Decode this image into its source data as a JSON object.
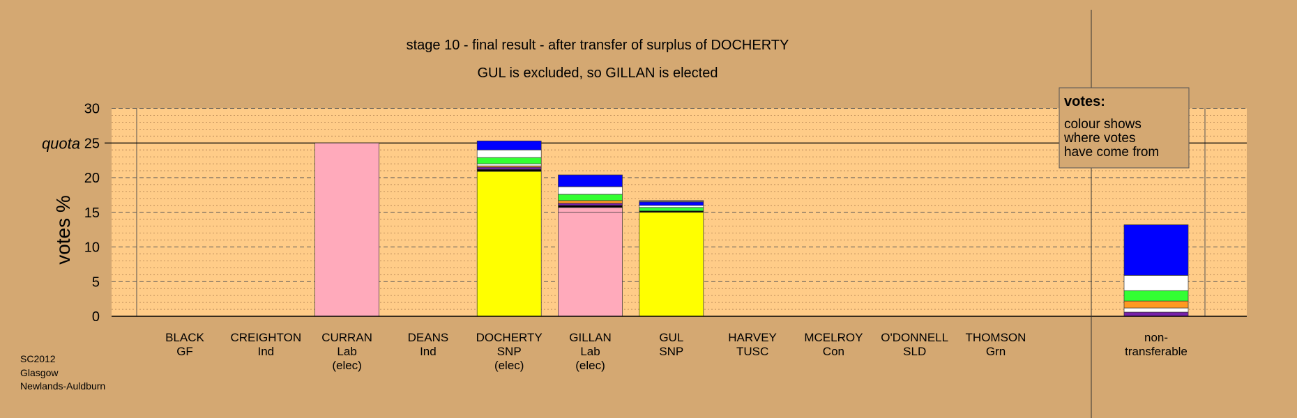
{
  "chart_data": {
    "type": "bar",
    "title": "stage 10 - final result - after transfer of surplus of DOCHERTY",
    "subtitle": "GUL is excluded, so GILLAN is elected",
    "ylabel": "votes %",
    "ylim": [
      0,
      30
    ],
    "yticks": [
      0,
      5,
      10,
      15,
      20,
      25,
      30
    ],
    "quota": 25,
    "quota_label": "quota",
    "colors": {
      "background": "#D4A872",
      "plot_bg": "#FFCC88",
      "lab": "#FFAABB",
      "snp": "#FFFF00",
      "blue": "#0000FF",
      "white": "#FFFFFF",
      "green": "#33FF33",
      "orange": "#FF9922",
      "purple": "#7722AA",
      "black": "#000000",
      "grey": "#777777"
    },
    "categories": [
      {
        "name": "BLACK",
        "party": "GF",
        "note": "",
        "segments": []
      },
      {
        "name": "CREIGHTON",
        "party": "Ind",
        "note": "",
        "segments": []
      },
      {
        "name": "CURRAN",
        "party": "Lab",
        "note": "(elec)",
        "segments": [
          {
            "color": "lab",
            "value": 25.0
          }
        ]
      },
      {
        "name": "DEANS",
        "party": "Ind",
        "note": "",
        "segments": []
      },
      {
        "name": "DOCHERTY",
        "party": "SNP",
        "note": "(elec)",
        "segments": [
          {
            "color": "snp",
            "value": 20.9
          },
          {
            "color": "black",
            "value": 0.3
          },
          {
            "color": "purple",
            "value": 0.3
          },
          {
            "color": "orange",
            "value": 0.2
          },
          {
            "color": "white",
            "value": 0.3
          },
          {
            "color": "green",
            "value": 0.9
          },
          {
            "color": "white",
            "value": 1.1
          },
          {
            "color": "blue",
            "value": 1.3
          }
        ]
      },
      {
        "name": "GILLAN",
        "party": "Lab",
        "note": "(elec)",
        "segments": [
          {
            "color": "lab",
            "value": 15.0
          },
          {
            "color": "lab",
            "value": 0.7
          },
          {
            "color": "black",
            "value": 0.3
          },
          {
            "color": "purple",
            "value": 0.3
          },
          {
            "color": "orange",
            "value": 0.4
          },
          {
            "color": "green",
            "value": 0.9
          },
          {
            "color": "white",
            "value": 1.1
          },
          {
            "color": "blue",
            "value": 1.7
          }
        ]
      },
      {
        "name": "GUL",
        "party": "SNP",
        "note": "",
        "segments": [
          {
            "color": "snp",
            "value": 15.0
          },
          {
            "color": "black",
            "value": 0.2
          },
          {
            "color": "green",
            "value": 0.5
          },
          {
            "color": "white",
            "value": 0.3
          },
          {
            "color": "blue",
            "value": 0.5
          },
          {
            "color": "grey",
            "value": 0.2
          }
        ]
      },
      {
        "name": "HARVEY",
        "party": "TUSC",
        "note": "",
        "segments": []
      },
      {
        "name": "MCELROY",
        "party": "Con",
        "note": "",
        "segments": []
      },
      {
        "name": "O'DONNELL",
        "party": "SLD",
        "note": "",
        "segments": []
      },
      {
        "name": "THOMSON",
        "party": "Grn",
        "note": "",
        "segments": []
      }
    ],
    "nontransferable": {
      "name": "non-",
      "name2": "transferable",
      "segments": [
        {
          "color": "purple",
          "value": 0.6
        },
        {
          "color": "white",
          "value": 0.6
        },
        {
          "color": "orange",
          "value": 1.0
        },
        {
          "color": "green",
          "value": 1.5
        },
        {
          "color": "white",
          "value": 2.2
        },
        {
          "color": "blue",
          "value": 7.3
        }
      ]
    },
    "legend": {
      "title": "votes:",
      "lines": [
        "colour shows",
        "where votes",
        "have come from"
      ],
      "placement": "top-right"
    }
  },
  "footer": {
    "lines": [
      "SC2012",
      "Glasgow",
      "Newlands-Auldburn"
    ]
  }
}
